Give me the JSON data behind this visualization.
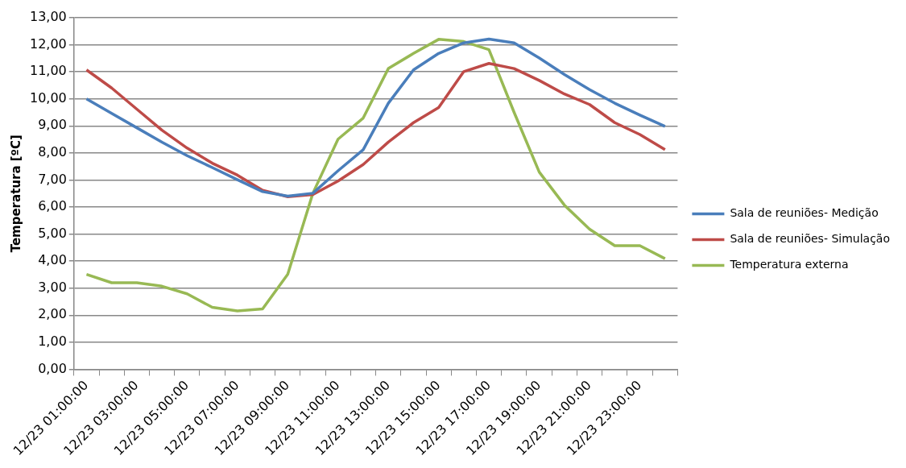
{
  "chart_data": {
    "type": "line",
    "ylabel": "Temperatura [ºC]",
    "categories": [
      "12/23 01:00:00",
      null,
      "12/23 03:00:00",
      null,
      "12/23 05:00:00",
      null,
      "12/23 07:00:00",
      null,
      "12/23 09:00:00",
      null,
      "12/23 11:00:00",
      null,
      "12/23 13:00:00",
      null,
      "12/23 15:00:00",
      null,
      "12/23 17:00:00",
      null,
      "12/23 19:00:00",
      null,
      "12/23 21:00:00",
      null,
      "12/23 23:00:00",
      null
    ],
    "series": [
      {
        "name": "Sala de reuniões- Medição",
        "color": "#4a7ebb",
        "values": [
          10.0,
          9.46,
          8.93,
          8.4,
          7.9,
          7.46,
          7.01,
          6.57,
          6.4,
          6.51,
          7.34,
          8.12,
          9.84,
          11.07,
          11.68,
          12.07,
          12.21,
          12.07,
          11.51,
          10.9,
          10.34,
          9.84,
          9.4,
          8.98
        ]
      },
      {
        "name": "Sala de reuniões- Simulação",
        "color": "#be4b48",
        "values": [
          11.07,
          10.4,
          9.62,
          8.84,
          8.18,
          7.62,
          7.18,
          6.62,
          6.38,
          6.46,
          6.96,
          7.57,
          8.4,
          9.12,
          9.68,
          11.01,
          11.31,
          11.12,
          10.68,
          10.18,
          9.79,
          9.12,
          8.68,
          8.12
        ]
      },
      {
        "name": "Temperatura externa",
        "color": "#98b954",
        "values": [
          3.51,
          3.2,
          3.2,
          3.07,
          2.79,
          2.29,
          2.16,
          2.23,
          3.51,
          6.51,
          8.51,
          9.29,
          11.12,
          11.68,
          12.2,
          12.12,
          11.82,
          9.5,
          7.29,
          6.07,
          5.18,
          4.57,
          4.57,
          4.09
        ]
      }
    ],
    "ylim": [
      0,
      13
    ],
    "yticks": [
      {
        "value": 0,
        "label": "0,00"
      },
      {
        "value": 1,
        "label": "1,00"
      },
      {
        "value": 2,
        "label": "2,00"
      },
      {
        "value": 3,
        "label": "3,00"
      },
      {
        "value": 4,
        "label": "4,00"
      },
      {
        "value": 5,
        "label": "5,00"
      },
      {
        "value": 6,
        "label": "6,00"
      },
      {
        "value": 7,
        "label": "7,00"
      },
      {
        "value": 8,
        "label": "8,00"
      },
      {
        "value": 9,
        "label": "9,00"
      },
      {
        "value": 10,
        "label": "10,00"
      },
      {
        "value": 11,
        "label": "11,00"
      },
      {
        "value": 12,
        "label": "12,00"
      },
      {
        "value": 13,
        "label": "13,00"
      }
    ],
    "grid": "y",
    "legend": "right",
    "marker": "none"
  }
}
